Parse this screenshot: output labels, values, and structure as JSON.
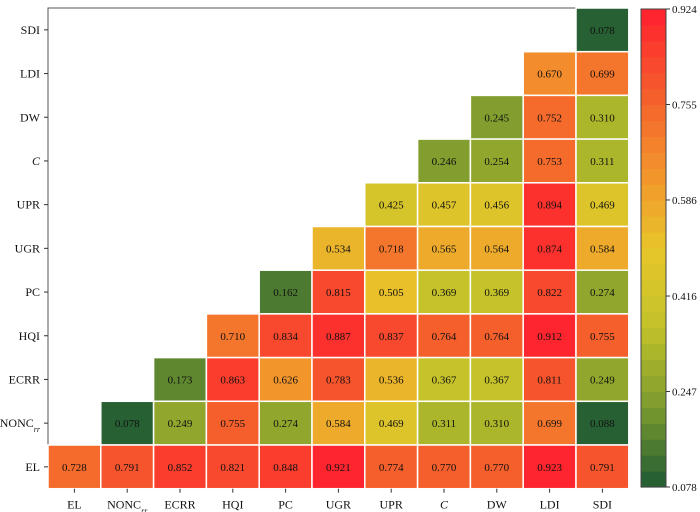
{
  "chart_data": {
    "type": "heatmap",
    "title": "",
    "x_labels": [
      {
        "main": "EL",
        "sub": ""
      },
      {
        "main": "NONC",
        "sub": "rr"
      },
      {
        "main": "ECRR",
        "sub": ""
      },
      {
        "main": "HQI",
        "sub": ""
      },
      {
        "main": "PC",
        "sub": ""
      },
      {
        "main": "UGR",
        "sub": ""
      },
      {
        "main": "UPR",
        "sub": ""
      },
      {
        "main": "C",
        "sub": "",
        "italic": true
      },
      {
        "main": "DW",
        "sub": ""
      },
      {
        "main": "LDI",
        "sub": ""
      },
      {
        "main": "SDI",
        "sub": ""
      }
    ],
    "y_labels_top_to_bottom": [
      {
        "main": "SDI",
        "sub": ""
      },
      {
        "main": "LDI",
        "sub": ""
      },
      {
        "main": "DW",
        "sub": ""
      },
      {
        "main": "C",
        "sub": "",
        "italic": true
      },
      {
        "main": "UPR",
        "sub": ""
      },
      {
        "main": "UGR",
        "sub": ""
      },
      {
        "main": "PC",
        "sub": ""
      },
      {
        "main": "HQI",
        "sub": ""
      },
      {
        "main": "ECRR",
        "sub": ""
      },
      {
        "main": "NONC",
        "sub": "rr"
      },
      {
        "main": "EL",
        "sub": ""
      }
    ],
    "rows_top_to_bottom": [
      [
        null,
        null,
        null,
        null,
        null,
        null,
        null,
        null,
        null,
        null,
        "0.078"
      ],
      [
        null,
        null,
        null,
        null,
        null,
        null,
        null,
        null,
        null,
        "0.670",
        "0.699"
      ],
      [
        null,
        null,
        null,
        null,
        null,
        null,
        null,
        null,
        "0.245",
        "0.752",
        "0.310"
      ],
      [
        null,
        null,
        null,
        null,
        null,
        null,
        null,
        "0.246",
        "0.254",
        "0.753",
        "0.311"
      ],
      [
        null,
        null,
        null,
        null,
        null,
        null,
        "0.425",
        "0.457",
        "0.456",
        "0.894",
        "0.469"
      ],
      [
        null,
        null,
        null,
        null,
        null,
        "0.534",
        "0.718",
        "0.565",
        "0.564",
        "0.874",
        "0.584"
      ],
      [
        null,
        null,
        null,
        null,
        "0.162",
        "0.815",
        "0.505",
        "0.369",
        "0.369",
        "0.822",
        "0.274"
      ],
      [
        null,
        null,
        null,
        "0.710",
        "0.834",
        "0.887",
        "0.837",
        "0.764",
        "0.764",
        "0.912",
        "0.755"
      ],
      [
        null,
        null,
        "0.173",
        "0.863",
        "0.626",
        "0.783",
        "0.536",
        "0.367",
        "0.367",
        "0.811",
        "0.249"
      ],
      [
        null,
        "0.078",
        "0.249",
        "0.755",
        "0.274",
        "0.584",
        "0.469",
        "0.311",
        "0.310",
        "0.699",
        "0.088"
      ],
      [
        "0.728",
        "0.791",
        "0.852",
        "0.821",
        "0.848",
        "0.921",
        "0.774",
        "0.770",
        "0.770",
        "0.923",
        "0.791"
      ]
    ],
    "colorbar": {
      "min": 0.078,
      "max": 0.924,
      "ticks": [
        "0.924",
        "0.755",
        "0.586",
        "0.416",
        "0.247",
        "0.078"
      ],
      "levels": 30,
      "colors_low_to_high": [
        "#1e5a32",
        "#7a9a2e",
        "#c2c22a",
        "#e8c52a",
        "#f3912c",
        "#f55a2c",
        "#ff1f2e"
      ]
    }
  }
}
